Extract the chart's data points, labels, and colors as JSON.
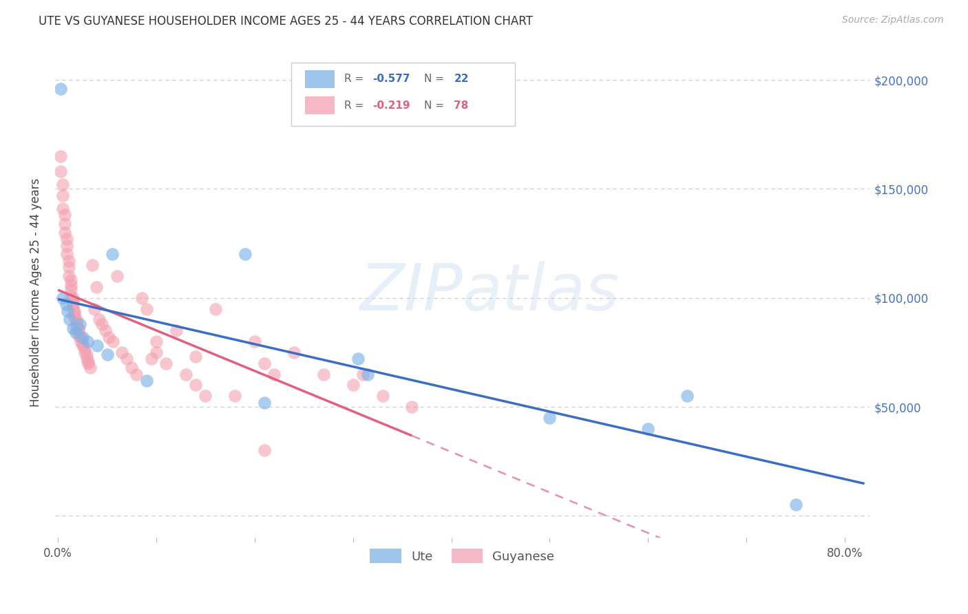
{
  "title": "UTE VS GUYANESE HOUSEHOLDER INCOME AGES 25 - 44 YEARS CORRELATION CHART",
  "source": "Source: ZipAtlas.com",
  "ylabel": "Householder Income Ages 25 - 44 years",
  "xlim": [
    -0.003,
    0.825
  ],
  "ylim": [
    -10000,
    215000
  ],
  "xticks": [
    0.0,
    0.1,
    0.2,
    0.3,
    0.4,
    0.5,
    0.6,
    0.7,
    0.8
  ],
  "xticklabels": [
    "0.0%",
    "",
    "",
    "",
    "",
    "",
    "",
    "",
    "80.0%"
  ],
  "yticks": [
    0,
    50000,
    100000,
    150000,
    200000
  ],
  "yticklabels_right": [
    "",
    "$50,000",
    "$100,000",
    "$150,000",
    "$200,000"
  ],
  "ute_color": "#7EB3E8",
  "guyanese_color": "#F4A0B0",
  "blue_line_color": "#3A6DC4",
  "pink_line_color": "#E06080",
  "watermark_zip": "ZIP",
  "watermark_atlas": "atlas",
  "legend_label_ute": "Ute",
  "legend_label_guyanese": "Guyanese",
  "ute_x": [
    0.003,
    0.005,
    0.008,
    0.01,
    0.012,
    0.015,
    0.018,
    0.022,
    0.025,
    0.03,
    0.04,
    0.05,
    0.055,
    0.09,
    0.19,
    0.21,
    0.305,
    0.315,
    0.5,
    0.6,
    0.64,
    0.75
  ],
  "ute_y": [
    196000,
    100000,
    97000,
    94000,
    90000,
    86000,
    84000,
    88000,
    82000,
    80000,
    78000,
    74000,
    120000,
    62000,
    120000,
    52000,
    72000,
    65000,
    45000,
    40000,
    55000,
    5000
  ],
  "guyanese_x": [
    0.003,
    0.003,
    0.005,
    0.005,
    0.005,
    0.007,
    0.007,
    0.007,
    0.009,
    0.009,
    0.009,
    0.011,
    0.011,
    0.011,
    0.013,
    0.013,
    0.013,
    0.013,
    0.015,
    0.015,
    0.015,
    0.015,
    0.017,
    0.017,
    0.017,
    0.019,
    0.019,
    0.019,
    0.021,
    0.021,
    0.021,
    0.023,
    0.023,
    0.025,
    0.025,
    0.027,
    0.027,
    0.029,
    0.029,
    0.031,
    0.031,
    0.033,
    0.035,
    0.037,
    0.039,
    0.042,
    0.045,
    0.048,
    0.052,
    0.056,
    0.06,
    0.065,
    0.07,
    0.075,
    0.08,
    0.085,
    0.09,
    0.095,
    0.1,
    0.1,
    0.11,
    0.12,
    0.13,
    0.14,
    0.15,
    0.16,
    0.18,
    0.2,
    0.21,
    0.22,
    0.24,
    0.27,
    0.3,
    0.31,
    0.33,
    0.36,
    0.21,
    0.14
  ],
  "guyanese_y": [
    165000,
    158000,
    152000,
    147000,
    141000,
    138000,
    134000,
    130000,
    127000,
    124000,
    120000,
    117000,
    114000,
    110000,
    108000,
    106000,
    104000,
    101000,
    100000,
    98000,
    97000,
    95000,
    94000,
    93000,
    91000,
    90000,
    89000,
    87000,
    86000,
    85000,
    83000,
    82000,
    80000,
    79000,
    78000,
    77000,
    75000,
    74000,
    72000,
    71000,
    70000,
    68000,
    115000,
    95000,
    105000,
    90000,
    88000,
    85000,
    82000,
    80000,
    110000,
    75000,
    72000,
    68000,
    65000,
    100000,
    95000,
    72000,
    80000,
    75000,
    70000,
    85000,
    65000,
    60000,
    55000,
    95000,
    55000,
    80000,
    70000,
    65000,
    75000,
    65000,
    60000,
    65000,
    55000,
    50000,
    30000,
    73000
  ]
}
